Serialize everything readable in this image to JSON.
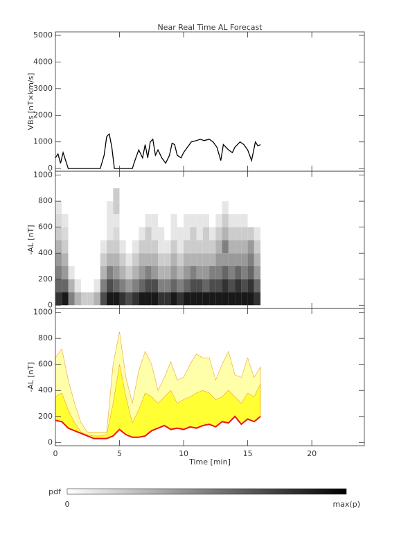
{
  "chart_data": [
    {
      "type": "line",
      "title": "Near Real Time AL Forecast",
      "ylabel": "VBs [nT×km/s]",
      "color": "#000000",
      "x": [
        0,
        0.2,
        0.4,
        0.6,
        0.8,
        1.0,
        1.5,
        2,
        3,
        3.5,
        3.8,
        4.0,
        4.2,
        4.4,
        4.6,
        5,
        6,
        6.2,
        6.5,
        6.8,
        7.0,
        7.2,
        7.4,
        7.6,
        7.8,
        8.0,
        8.3,
        8.6,
        8.9,
        9.1,
        9.3,
        9.5,
        9.8,
        10,
        10.3,
        10.6,
        11,
        11.3,
        11.6,
        12,
        12.3,
        12.6,
        12.9,
        13.1,
        13.5,
        13.8,
        14,
        14.4,
        14.7,
        15,
        15.3,
        15.6,
        15.8,
        16
      ],
      "values": [
        400,
        550,
        200,
        600,
        300,
        0,
        0,
        0,
        0,
        0,
        500,
        1200,
        1300,
        800,
        0,
        0,
        0,
        300,
        700,
        400,
        900,
        400,
        1000,
        1100,
        500,
        700,
        400,
        200,
        500,
        950,
        900,
        500,
        400,
        600,
        800,
        1000,
        1050,
        1100,
        1050,
        1100,
        1000,
        800,
        300,
        900,
        700,
        600,
        800,
        1000,
        900,
        700,
        300,
        1000,
        850,
        900
      ],
      "ylim": [
        -100,
        5130
      ],
      "yticks": [
        0,
        1000,
        2000,
        3000,
        4000,
        5000
      ]
    },
    {
      "type": "heatmap",
      "ylabel": "-AL [nT]",
      "x_bins": [
        0,
        0.5,
        1,
        1.5,
        2,
        2.5,
        3,
        3.5,
        4,
        4.5,
        5,
        5.5,
        6,
        6.5,
        7,
        7.5,
        8,
        8.5,
        9,
        9.5,
        10,
        10.5,
        11,
        11.5,
        12,
        12.5,
        13,
        13.5,
        14,
        14.5,
        15,
        15.5,
        16
      ],
      "y_bins": [
        0,
        100,
        200,
        300,
        400,
        500,
        600,
        700,
        800,
        900
      ],
      "values": [
        [
          0.8,
          0.6,
          0.5,
          0.4,
          0.3,
          0.2,
          0.15,
          0.1,
          0
        ],
        [
          0.9,
          0.6,
          0.4,
          0.3,
          0.2,
          0.15,
          0.1,
          0,
          0
        ],
        [
          0.5,
          0.3,
          0.1,
          0,
          0,
          0,
          0,
          0,
          0
        ],
        [
          0.3,
          0.1,
          0,
          0,
          0,
          0,
          0,
          0,
          0
        ],
        [
          0.2,
          0,
          0,
          0,
          0,
          0,
          0,
          0,
          0
        ],
        [
          0.2,
          0,
          0,
          0,
          0,
          0,
          0,
          0,
          0
        ],
        [
          0.3,
          0.1,
          0,
          0,
          0,
          0,
          0,
          0,
          0
        ],
        [
          0.7,
          0.5,
          0.3,
          0.2,
          0.1,
          0,
          0,
          0,
          0
        ],
        [
          0.9,
          0.7,
          0.5,
          0.3,
          0.2,
          0.1,
          0.1,
          0.1,
          0
        ],
        [
          0.9,
          0.6,
          0.4,
          0.3,
          0.2,
          0.15,
          0.1,
          0.2,
          0.2
        ],
        [
          0.8,
          0.5,
          0.3,
          0.2,
          0.1,
          0,
          0,
          0,
          0
        ],
        [
          0.7,
          0.4,
          0.2,
          0.1,
          0,
          0,
          0,
          0,
          0
        ],
        [
          0.8,
          0.5,
          0.3,
          0.2,
          0.1,
          0,
          0,
          0,
          0
        ],
        [
          0.9,
          0.6,
          0.4,
          0.3,
          0.2,
          0.1,
          0,
          0,
          0
        ],
        [
          0.9,
          0.7,
          0.5,
          0.3,
          0.2,
          0.2,
          0.1,
          0,
          0
        ],
        [
          0.9,
          0.7,
          0.4,
          0.3,
          0.2,
          0.1,
          0.1,
          0,
          0
        ],
        [
          0.8,
          0.5,
          0.3,
          0.2,
          0.1,
          0.1,
          0,
          0,
          0
        ],
        [
          0.8,
          0.5,
          0.3,
          0.2,
          0.1,
          0,
          0,
          0,
          0
        ],
        [
          0.9,
          0.6,
          0.4,
          0.3,
          0.2,
          0.1,
          0.1,
          0,
          0
        ],
        [
          0.8,
          0.5,
          0.3,
          0.2,
          0.1,
          0.1,
          0,
          0,
          0
        ],
        [
          0.9,
          0.6,
          0.4,
          0.3,
          0.2,
          0.1,
          0.1,
          0,
          0
        ],
        [
          0.9,
          0.7,
          0.5,
          0.3,
          0.2,
          0.2,
          0.1,
          0,
          0
        ],
        [
          0.9,
          0.7,
          0.4,
          0.3,
          0.2,
          0.1,
          0.1,
          0,
          0
        ],
        [
          0.9,
          0.6,
          0.4,
          0.3,
          0.2,
          0.2,
          0.1,
          0,
          0
        ],
        [
          0.9,
          0.7,
          0.5,
          0.3,
          0.2,
          0.1,
          0,
          0,
          0
        ],
        [
          0.9,
          0.7,
          0.5,
          0.4,
          0.3,
          0.2,
          0.1,
          0,
          0
        ],
        [
          0.9,
          0.8,
          0.6,
          0.4,
          0.5,
          0.3,
          0.2,
          0.1,
          0
        ],
        [
          0.9,
          0.7,
          0.5,
          0.4,
          0.3,
          0.2,
          0.1,
          0,
          0
        ],
        [
          0.9,
          0.8,
          0.6,
          0.4,
          0.3,
          0.2,
          0.1,
          0,
          0
        ],
        [
          0.9,
          0.7,
          0.5,
          0.4,
          0.3,
          0.2,
          0.1,
          0,
          0
        ],
        [
          0.9,
          0.8,
          0.6,
          0.5,
          0.4,
          0.2,
          0,
          0,
          0
        ],
        [
          0.8,
          0.6,
          0.4,
          0.3,
          0.2,
          0.1,
          0,
          0,
          0
        ]
      ],
      "ylim": [
        -25,
        1030
      ],
      "yticks": [
        0,
        200,
        400,
        600,
        800,
        1000
      ]
    },
    {
      "type": "band",
      "ylabel": "-AL [nT]",
      "xlabel": "Time [min]",
      "x": [
        0,
        0.5,
        1,
        1.5,
        2,
        2.5,
        3,
        3.5,
        4,
        4.5,
        5,
        5.5,
        6,
        6.5,
        7,
        7.5,
        8,
        8.5,
        9,
        9.5,
        10,
        10.5,
        11,
        11.5,
        12,
        12.5,
        13,
        13.5,
        14,
        14.5,
        15,
        15.5,
        16
      ],
      "series": [
        {
          "color": "#ffffaa",
          "edge_color": "#f0a030",
          "values": [
            650,
            720,
            480,
            300,
            150,
            80,
            80,
            80,
            80,
            600,
            850,
            500,
            300,
            550,
            700,
            600,
            400,
            500,
            620,
            480,
            500,
            600,
            680,
            650,
            650,
            480,
            600,
            700,
            520,
            500,
            650,
            500,
            580
          ]
        },
        {
          "color": "#ffff33",
          "edge_color": "#f0a030",
          "values": [
            350,
            380,
            250,
            150,
            80,
            60,
            50,
            50,
            60,
            300,
            600,
            350,
            150,
            250,
            380,
            350,
            300,
            350,
            400,
            300,
            330,
            350,
            380,
            400,
            380,
            330,
            350,
            400,
            350,
            300,
            380,
            350,
            450
          ]
        },
        {
          "color": "#ee1111",
          "values": [
            170,
            160,
            110,
            90,
            70,
            50,
            30,
            30,
            30,
            50,
            100,
            60,
            40,
            40,
            50,
            90,
            110,
            130,
            100,
            110,
            100,
            120,
            110,
            130,
            140,
            120,
            160,
            150,
            200,
            140,
            180,
            160,
            200
          ]
        }
      ],
      "xlim": [
        0,
        24.1
      ],
      "xticks": [
        0,
        5,
        10,
        15,
        20
      ],
      "ylim": [
        -25,
        1030
      ],
      "yticks": [
        0,
        200,
        400,
        600,
        800,
        1000
      ]
    }
  ],
  "colorbar": {
    "title": "pdf",
    "min_label": "0",
    "max_label": "max(p)"
  }
}
